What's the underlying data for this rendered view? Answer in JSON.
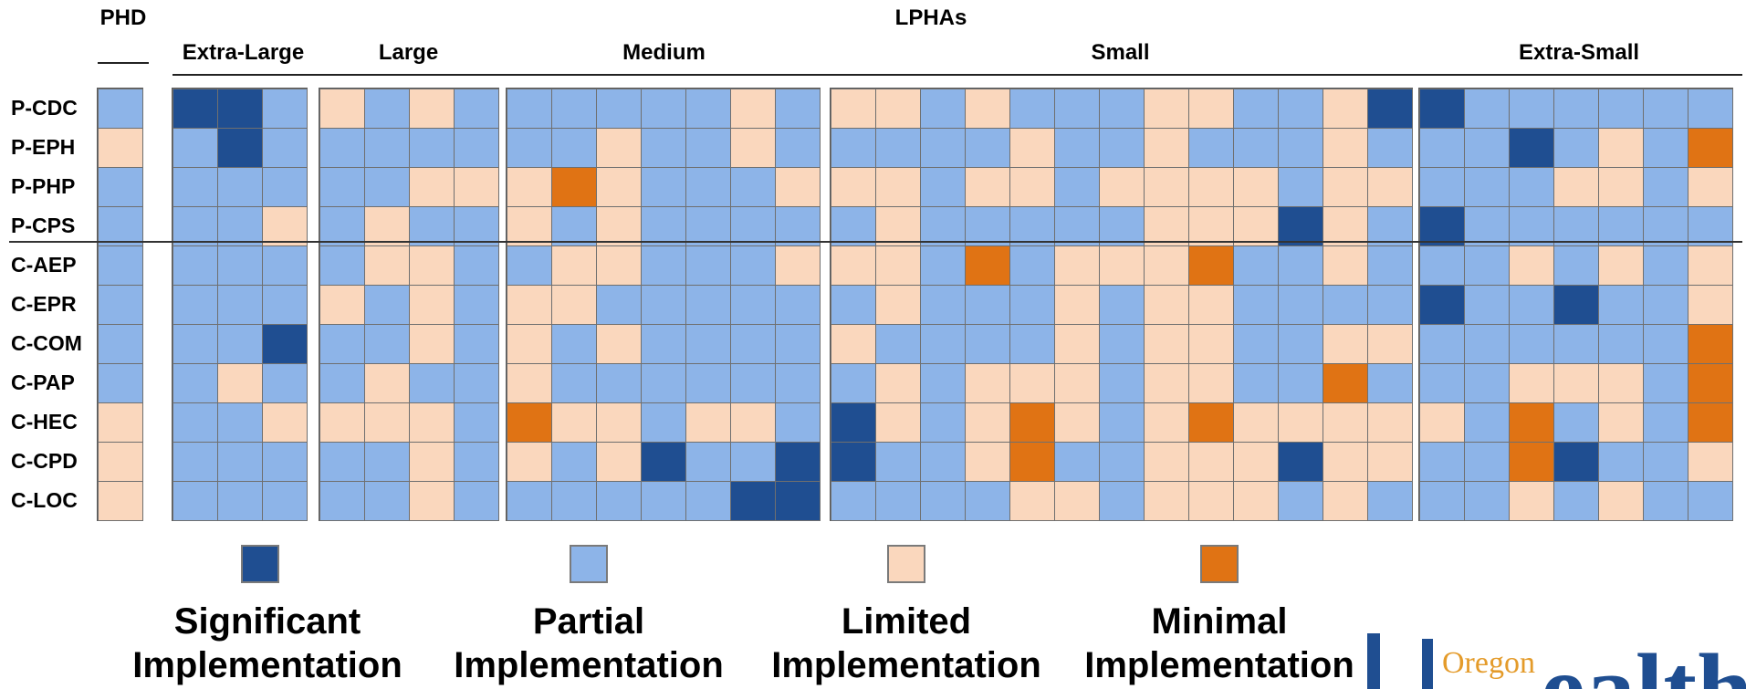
{
  "headers": {
    "phd": "PHD",
    "lphas": "LPHAs",
    "groups": [
      "Extra-Large",
      "Large",
      "Medium",
      "Small",
      "Extra-Small"
    ]
  },
  "colors": {
    "S": "#1f4e91",
    "P": "#8db4e8",
    "L": "#fad7bd",
    "M": "#e07314",
    "grid_border": "#6f6f6f"
  },
  "chart_data": {
    "type": "heatmap",
    "rows": [
      "P-CDC",
      "P-EPH",
      "P-PHP",
      "P-CPS",
      "C-AEP",
      "C-EPR",
      "C-COM",
      "C-PAP",
      "C-HEC",
      "C-CPD",
      "C-LOC"
    ],
    "groups": [
      {
        "name": "PHD",
        "columns": 1,
        "values": [
          "P",
          "L",
          "P",
          "P",
          "P",
          "P",
          "P",
          "P",
          "L",
          "L",
          "L"
        ]
      },
      {
        "name": "Extra-Large",
        "columns": 3,
        "values": [
          [
            "S",
            "S",
            "P"
          ],
          [
            "P",
            "S",
            "P"
          ],
          [
            "P",
            "P",
            "P"
          ],
          [
            "P",
            "P",
            "L"
          ],
          [
            "P",
            "P",
            "P"
          ],
          [
            "P",
            "P",
            "P"
          ],
          [
            "P",
            "P",
            "S"
          ],
          [
            "P",
            "L",
            "P"
          ],
          [
            "P",
            "P",
            "L"
          ],
          [
            "P",
            "P",
            "P"
          ],
          [
            "P",
            "P",
            "P"
          ]
        ]
      },
      {
        "name": "Large",
        "columns": 4,
        "values": [
          [
            "L",
            "P",
            "L",
            "P"
          ],
          [
            "P",
            "P",
            "P",
            "P"
          ],
          [
            "P",
            "P",
            "L",
            "L"
          ],
          [
            "P",
            "L",
            "P",
            "P"
          ],
          [
            "P",
            "L",
            "L",
            "P"
          ],
          [
            "L",
            "P",
            "L",
            "P"
          ],
          [
            "P",
            "P",
            "L",
            "P"
          ],
          [
            "P",
            "L",
            "P",
            "P"
          ],
          [
            "L",
            "L",
            "L",
            "P"
          ],
          [
            "P",
            "P",
            "L",
            "P"
          ],
          [
            "P",
            "P",
            "L",
            "P"
          ]
        ]
      },
      {
        "name": "Medium",
        "columns": 7,
        "values": [
          [
            "P",
            "P",
            "P",
            "P",
            "P",
            "L",
            "P"
          ],
          [
            "P",
            "P",
            "L",
            "P",
            "P",
            "L",
            "P"
          ],
          [
            "L",
            "M",
            "L",
            "P",
            "P",
            "P",
            "L"
          ],
          [
            "L",
            "P",
            "L",
            "P",
            "P",
            "P",
            "P"
          ],
          [
            "P",
            "L",
            "L",
            "P",
            "P",
            "P",
            "L"
          ],
          [
            "L",
            "L",
            "P",
            "P",
            "P",
            "P",
            "P"
          ],
          [
            "L",
            "P",
            "L",
            "P",
            "P",
            "P",
            "P"
          ],
          [
            "L",
            "P",
            "P",
            "P",
            "P",
            "P",
            "P"
          ],
          [
            "M",
            "L",
            "L",
            "P",
            "L",
            "L",
            "P"
          ],
          [
            "L",
            "P",
            "L",
            "S",
            "P",
            "P",
            "S"
          ],
          [
            "P",
            "P",
            "P",
            "P",
            "P",
            "S",
            "S"
          ]
        ]
      },
      {
        "name": "Small",
        "columns": 13,
        "values": [
          [
            "L",
            "L",
            "P",
            "L",
            "P",
            "P",
            "P",
            "L",
            "L",
            "P",
            "P",
            "L",
            "S"
          ],
          [
            "P",
            "P",
            "P",
            "P",
            "L",
            "P",
            "P",
            "L",
            "P",
            "P",
            "P",
            "L",
            "P"
          ],
          [
            "L",
            "L",
            "P",
            "L",
            "L",
            "P",
            "L",
            "L",
            "L",
            "L",
            "P",
            "L",
            "L"
          ],
          [
            "P",
            "L",
            "P",
            "P",
            "P",
            "P",
            "P",
            "L",
            "L",
            "L",
            "S",
            "L",
            "P"
          ],
          [
            "L",
            "L",
            "P",
            "M",
            "P",
            "L",
            "L",
            "L",
            "M",
            "P",
            "P",
            "L",
            "P"
          ],
          [
            "P",
            "L",
            "P",
            "P",
            "P",
            "L",
            "P",
            "L",
            "L",
            "P",
            "P",
            "P",
            "P"
          ],
          [
            "L",
            "P",
            "P",
            "P",
            "P",
            "L",
            "P",
            "L",
            "L",
            "P",
            "P",
            "L",
            "L"
          ],
          [
            "P",
            "L",
            "P",
            "L",
            "L",
            "L",
            "P",
            "L",
            "L",
            "P",
            "P",
            "M",
            "P"
          ],
          [
            "S",
            "L",
            "P",
            "L",
            "M",
            "L",
            "P",
            "L",
            "M",
            "L",
            "L",
            "L",
            "L"
          ],
          [
            "S",
            "P",
            "P",
            "L",
            "M",
            "P",
            "P",
            "L",
            "L",
            "L",
            "S",
            "L",
            "L"
          ],
          [
            "P",
            "P",
            "P",
            "P",
            "L",
            "L",
            "P",
            "L",
            "L",
            "L",
            "P",
            "L",
            "P"
          ]
        ]
      },
      {
        "name": "Extra-Small",
        "columns": 7,
        "values": [
          [
            "S",
            "P",
            "P",
            "P",
            "P",
            "P",
            "P"
          ],
          [
            "P",
            "P",
            "S",
            "P",
            "L",
            "P",
            "M"
          ],
          [
            "P",
            "P",
            "P",
            "L",
            "L",
            "P",
            "L"
          ],
          [
            "S",
            "P",
            "P",
            "P",
            "P",
            "P",
            "P"
          ],
          [
            "P",
            "P",
            "L",
            "P",
            "L",
            "P",
            "L"
          ],
          [
            "S",
            "P",
            "P",
            "S",
            "P",
            "P",
            "L"
          ],
          [
            "P",
            "P",
            "P",
            "P",
            "P",
            "P",
            "M"
          ],
          [
            "P",
            "P",
            "L",
            "L",
            "L",
            "P",
            "M"
          ],
          [
            "L",
            "P",
            "M",
            "P",
            "L",
            "P",
            "M"
          ],
          [
            "P",
            "P",
            "M",
            "S",
            "P",
            "P",
            "L"
          ],
          [
            "P",
            "P",
            "L",
            "P",
            "L",
            "P",
            "P"
          ]
        ]
      }
    ],
    "legend": [
      {
        "key": "S",
        "line1": "Significant",
        "line2": "Implementation"
      },
      {
        "key": "P",
        "line1": "Partial",
        "line2": "Implementation"
      },
      {
        "key": "L",
        "line1": "Limited",
        "line2": "Implementation"
      },
      {
        "key": "M",
        "line1": "Minimal",
        "line2": "Implementation"
      }
    ]
  },
  "logo": {
    "word": "Oregon",
    "partial_text": "ealth"
  }
}
